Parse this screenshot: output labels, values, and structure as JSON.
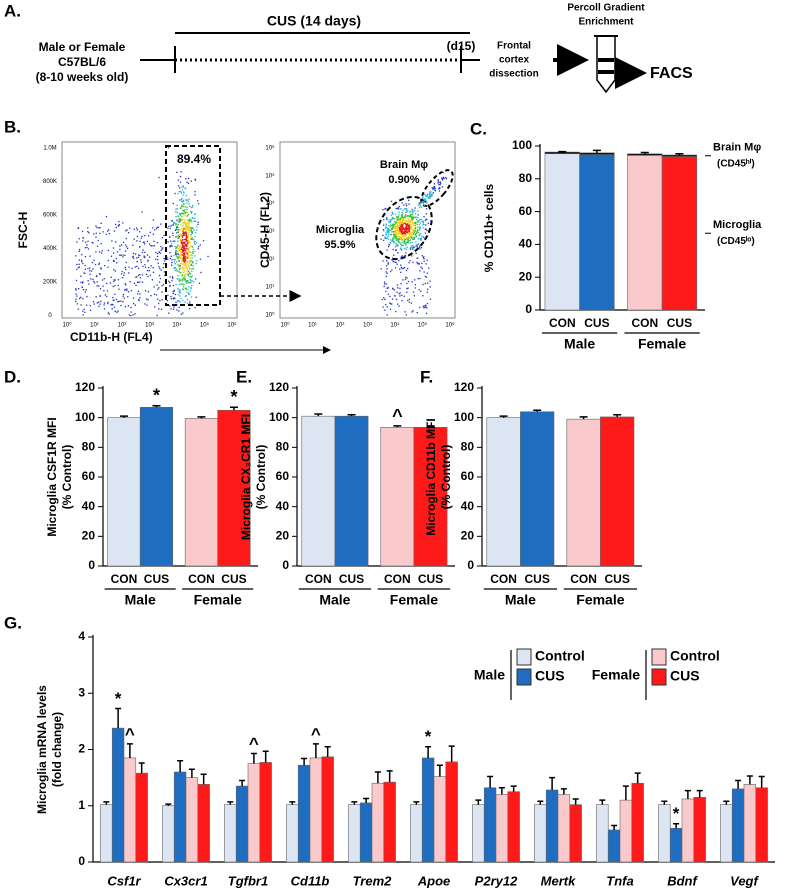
{
  "panel_a": {
    "label": "A.",
    "strain": [
      "Male or Female",
      "C57BL/6",
      "(8-10 weeks old)"
    ],
    "protocol": "CUS (14 days)",
    "endpoint": "(d15)",
    "dissection": [
      "Frontal",
      "cortex",
      "dissection"
    ],
    "enrichment": [
      "Percoll Gradient",
      "Enrichment"
    ],
    "readout": "FACS"
  },
  "panel_b": {
    "label": "B.",
    "left": {
      "ylabel": "FSC-H",
      "xlabel": "CD11b-H (FL4)",
      "yticks": [
        "1.0M",
        "800K",
        "600K",
        "400K",
        "200K",
        "0"
      ],
      "xticks": [
        "10⁰",
        "10¹",
        "10²",
        "10³",
        "10⁴",
        "10⁵",
        "10⁶"
      ],
      "gate": "89.4%"
    },
    "right": {
      "ylabel": "CD45-H (FL2)",
      "yticks": [
        "10⁶",
        "10⁵",
        "10⁴",
        "10³",
        "10²",
        "10¹",
        "10⁰"
      ],
      "xticks": [
        "10⁰",
        "10¹",
        "10²",
        "10³",
        "10⁴",
        "10⁵",
        "10⁶"
      ],
      "gates": [
        {
          "name": "Brain Mφ",
          "percent": "0.90%"
        },
        {
          "name": "Microglia",
          "percent": "95.9%"
        }
      ]
    }
  },
  "chart_data": [
    {
      "type": "stacked_bar",
      "label": "C.",
      "ylabel": [
        "% CD11b+ cells"
      ],
      "categories": [
        "CON",
        "CUS",
        "CON",
        "CUS"
      ],
      "groups": [
        "Male",
        "Female"
      ],
      "colors": [
        "#dce6f2",
        "#1f6dc0",
        "#f9c9cb",
        "#ff1a1a"
      ],
      "series": [
        {
          "name": "Microglia",
          "note": "(CD45ˡᵒ)",
          "values": [
            95.3,
            94.8,
            94.3,
            93.6
          ]
        },
        {
          "name": "Brain Mφ",
          "note": "(CD45ʰⁱ)",
          "color": "#000000",
          "values": [
            1,
            1,
            0.9,
            0.9
          ],
          "errors": [
            0.3,
            1.5,
            0.8,
            0.8
          ]
        }
      ],
      "ylim": [
        0,
        100
      ],
      "yticks": [
        0,
        20,
        40,
        60,
        80,
        100
      ]
    },
    {
      "type": "bar",
      "label": "D.",
      "ylabel": [
        "Microglia CSF1R MFI",
        "(% Control)"
      ],
      "categories": [
        "CON",
        "CUS",
        "CON",
        "CUS"
      ],
      "groups": [
        "Male",
        "Female"
      ],
      "colors": [
        "#dce6f2",
        "#1f6dc0",
        "#f9c9cb",
        "#ff1a1a"
      ],
      "values": [
        100,
        107,
        99.5,
        105
      ],
      "errors": [
        1,
        1,
        1,
        2
      ],
      "annotations": [
        null,
        "*",
        null,
        "*"
      ],
      "ylim": [
        0,
        120
      ],
      "yticks": [
        0,
        20,
        40,
        60,
        80,
        100,
        120
      ]
    },
    {
      "type": "bar",
      "label": "E.",
      "ylabel": [
        "Microglia CX₃CR1 MFI",
        "(% Control)"
      ],
      "categories": [
        "CON",
        "CUS",
        "CON",
        "CUS"
      ],
      "groups": [
        "Male",
        "Female"
      ],
      "colors": [
        "#dce6f2",
        "#1f6dc0",
        "#f9c9cb",
        "#ff1a1a"
      ],
      "values": [
        101,
        101,
        93.5,
        93.5
      ],
      "errors": [
        1.5,
        1,
        1,
        1
      ],
      "annotations": [
        null,
        null,
        "^",
        null
      ],
      "ylim": [
        0,
        120
      ],
      "yticks": [
        0,
        20,
        40,
        60,
        80,
        100,
        120
      ]
    },
    {
      "type": "bar",
      "label": "F.",
      "ylabel": [
        "Microglia CD11b MFI",
        "(% Control)"
      ],
      "categories": [
        "CON",
        "CUS",
        "CON",
        "CUS"
      ],
      "groups": [
        "Male",
        "Female"
      ],
      "colors": [
        "#dce6f2",
        "#1f6dc0",
        "#f9c9cb",
        "#ff1a1a"
      ],
      "values": [
        100,
        104,
        99,
        100.5
      ],
      "errors": [
        1,
        1,
        1.5,
        1.5
      ],
      "annotations": [
        null,
        null,
        null,
        null
      ],
      "ylim": [
        0,
        120
      ],
      "yticks": [
        0,
        20,
        40,
        60,
        80,
        100,
        120
      ]
    },
    {
      "type": "grouped_bar",
      "label": "G.",
      "ylabel": [
        "Microglia mRNA levels",
        "(fold change)"
      ],
      "categories": [
        "Csf1r",
        "Cx3cr1",
        "Tgfbr1",
        "Cd11b",
        "Trem2",
        "Apoe",
        "P2ry12",
        "Mertk",
        "Tnfa",
        "Bdnf",
        "Vegf"
      ],
      "legend_groups": [
        "Male",
        "Female"
      ],
      "series": [
        {
          "name": "Control",
          "color": "#dce6f2",
          "values": [
            1.02,
            1,
            1.02,
            1.02,
            1.02,
            1.02,
            1.02,
            1.02,
            1.02,
            1.02,
            1.02
          ],
          "errors": [
            0.05,
            0.03,
            0.05,
            0.05,
            0.05,
            0.05,
            0.08,
            0.06,
            0.08,
            0.06,
            0.06
          ],
          "annotations": [
            null,
            null,
            null,
            null,
            null,
            null,
            null,
            null,
            null,
            null,
            null
          ]
        },
        {
          "name": "CUS",
          "color": "#1f6dc0",
          "values": [
            2.38,
            1.6,
            1.35,
            1.72,
            1.05,
            1.85,
            1.32,
            1.28,
            0.57,
            0.6,
            1.3
          ],
          "errors": [
            0.35,
            0.2,
            0.1,
            0.12,
            0.08,
            0.2,
            0.2,
            0.22,
            0.08,
            0.08,
            0.15
          ],
          "annotations": [
            "*",
            null,
            null,
            null,
            null,
            "*",
            null,
            null,
            null,
            "*",
            null
          ]
        },
        {
          "name": "Control",
          "color": "#f9c9cb",
          "values": [
            1.85,
            1.5,
            1.75,
            1.85,
            1.4,
            1.52,
            1.2,
            1.2,
            1.1,
            1.12,
            1.38
          ],
          "errors": [
            0.25,
            0.15,
            0.18,
            0.25,
            0.2,
            0.2,
            0.12,
            0.1,
            0.25,
            0.15,
            0.15
          ],
          "annotations": [
            "^",
            null,
            "^",
            "^",
            null,
            null,
            null,
            null,
            null,
            null,
            null
          ]
        },
        {
          "name": "CUS",
          "color": "#ff1a1a",
          "values": [
            1.58,
            1.38,
            1.77,
            1.87,
            1.42,
            1.78,
            1.25,
            1.02,
            1.4,
            1.15,
            1.32
          ],
          "errors": [
            0.18,
            0.18,
            0.2,
            0.18,
            0.2,
            0.28,
            0.1,
            0.1,
            0.18,
            0.12,
            0.2
          ],
          "annotations": [
            null,
            null,
            null,
            null,
            null,
            null,
            null,
            null,
            null,
            null,
            null
          ]
        }
      ],
      "ylim": [
        0,
        4
      ],
      "yticks": [
        0,
        1,
        2,
        3,
        4
      ]
    }
  ]
}
